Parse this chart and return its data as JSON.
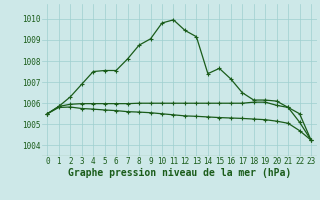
{
  "title": "Graphe pression niveau de la mer (hPa)",
  "background_color": "#cde8e8",
  "grid_color": "#9fcfcf",
  "line_color": "#1a5c1a",
  "ylim": [
    1003.5,
    1010.7
  ],
  "yticks": [
    1004,
    1005,
    1006,
    1007,
    1008,
    1009,
    1010
  ],
  "series1": [
    1005.5,
    1005.85,
    1006.3,
    1006.9,
    1007.5,
    1007.55,
    1007.55,
    1008.1,
    1008.75,
    1009.05,
    1009.8,
    1009.95,
    1009.45,
    1009.15,
    1007.4,
    1007.65,
    1007.15,
    1006.5,
    1006.15,
    1006.15,
    1006.1,
    1005.8,
    1005.1,
    1004.25
  ],
  "series2": [
    1005.5,
    1005.85,
    1005.95,
    1005.98,
    1005.98,
    1005.98,
    1005.98,
    1005.98,
    1006.0,
    1006.0,
    1006.0,
    1006.0,
    1006.0,
    1006.0,
    1006.0,
    1006.0,
    1006.0,
    1006.0,
    1006.05,
    1006.05,
    1005.9,
    1005.8,
    1005.5,
    1004.25
  ],
  "series3": [
    1005.5,
    1005.8,
    1005.82,
    1005.75,
    1005.72,
    1005.68,
    1005.65,
    1005.6,
    1005.58,
    1005.55,
    1005.5,
    1005.45,
    1005.4,
    1005.38,
    1005.35,
    1005.32,
    1005.3,
    1005.28,
    1005.25,
    1005.22,
    1005.15,
    1005.05,
    1004.7,
    1004.25
  ],
  "marker": "o",
  "marker_size": 2.5,
  "linewidth": 0.9,
  "title_fontsize": 7.0,
  "tick_fontsize": 5.5,
  "figsize": [
    3.2,
    2.0
  ],
  "dpi": 100
}
